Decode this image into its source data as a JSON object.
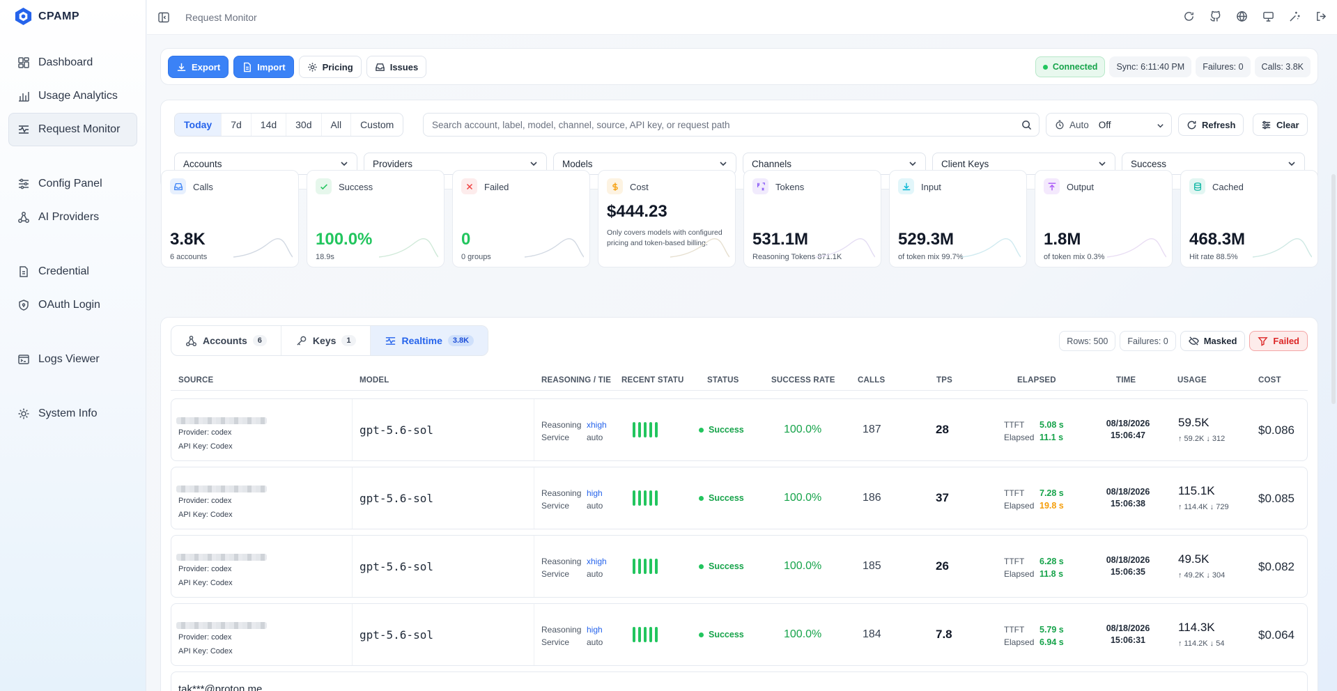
{
  "app": {
    "name": "CPAMP",
    "page_title": "Request Monitor"
  },
  "sidebar": {
    "items": [
      {
        "label": "Dashboard",
        "icon": "dashboard-icon"
      },
      {
        "label": "Usage Analytics",
        "icon": "bar-chart-icon"
      },
      {
        "label": "Request Monitor",
        "icon": "activity-icon",
        "active": true
      },
      {
        "label": "Config Panel",
        "icon": "sliders-icon"
      },
      {
        "label": "AI Providers",
        "icon": "network-icon"
      },
      {
        "label": "Credential",
        "icon": "file-icon"
      },
      {
        "label": "OAuth Login",
        "icon": "shield-icon"
      },
      {
        "label": "Logs Viewer",
        "icon": "terminal-icon"
      },
      {
        "label": "System Info",
        "icon": "cpu-icon"
      }
    ]
  },
  "toolbar": {
    "export": "Export",
    "import": "Import",
    "pricing": "Pricing",
    "issues": "Issues",
    "connected": "Connected",
    "sync": "Sync: 6:11:40 PM",
    "failures": "Failures: 0",
    "calls": "Calls: 3.8K"
  },
  "filters": {
    "ranges": [
      "Today",
      "7d",
      "14d",
      "30d",
      "All",
      "Custom"
    ],
    "active_range": "Today",
    "search_placeholder": "Search account, label, model, channel, source, API key, or request path",
    "auto_label": "Auto",
    "auto_value": "Off",
    "refresh": "Refresh",
    "clear": "Clear",
    "selects": [
      "Accounts",
      "Providers",
      "Models",
      "Channels",
      "Client Keys",
      "Success"
    ]
  },
  "cards": [
    {
      "label": "Calls",
      "value": "3.8K",
      "sub": "6 accounts",
      "color": "#3b82f6"
    },
    {
      "label": "Success",
      "value": "100.0%",
      "sub": "18.9s",
      "color": "#22c55e"
    },
    {
      "label": "Failed",
      "value": "0",
      "sub": "0 groups",
      "color": "#ef4444"
    },
    {
      "label": "Cost",
      "value": "$444.23",
      "note": "Only covers models with configured pricing and token-based billing.",
      "color": "#f59e0b"
    },
    {
      "label": "Tokens",
      "value": "531.1M",
      "sub": "Reasoning Tokens 871.1K",
      "color": "#8b5cf6"
    },
    {
      "label": "Input",
      "value": "529.3M",
      "sub": "of token mix 99.7%",
      "color": "#06b6d4"
    },
    {
      "label": "Output",
      "value": "1.8M",
      "sub": "of token mix 0.3%",
      "color": "#a855f7"
    },
    {
      "label": "Cached",
      "value": "468.3M",
      "sub": "Hit rate 88.5%",
      "color": "#14b8a6"
    }
  ],
  "tabs": [
    {
      "label": "Accounts",
      "count": "6"
    },
    {
      "label": "Keys",
      "count": "1"
    },
    {
      "label": "Realtime",
      "count": "3.8K"
    }
  ],
  "table_tools": {
    "rows": "Rows: 500",
    "failures": "Failures: 0",
    "masked": "Masked",
    "failed": "Failed"
  },
  "columns": [
    "SOURCE",
    "MODEL",
    "REASONING / TIER",
    "RECENT STATUS",
    "STATUS",
    "SUCCESS RATE",
    "CALLS",
    "TPS",
    "ELAPSED",
    "TIME",
    "USAGE",
    "COST"
  ],
  "rows": [
    {
      "provider": "Provider: codex",
      "apikey": "API Key: Codex",
      "model": "gpt-5.6-sol",
      "reasoning_label": "Reasoning",
      "reasoning": "xhigh",
      "service_label": "Service",
      "service": "auto",
      "status": "Success",
      "rate": "100.0%",
      "calls": "187",
      "tps": "28",
      "ttft_label": "TTFT",
      "ttft": "5.08 s",
      "elapsed_label": "Elapsed",
      "elapsed": "11.1 s",
      "elapsed_color": "#16a34a",
      "date": "08/18/2026",
      "time": "15:06:47",
      "usage": "59.5K",
      "usage_sub": "↑ 59.2K  ↓ 312",
      "cost": "$0.086"
    },
    {
      "provider": "Provider: codex",
      "apikey": "API Key: Codex",
      "model": "gpt-5.6-sol",
      "reasoning_label": "Reasoning",
      "reasoning": "high",
      "service_label": "Service",
      "service": "auto",
      "status": "Success",
      "rate": "100.0%",
      "calls": "186",
      "tps": "37",
      "ttft_label": "TTFT",
      "ttft": "7.28 s",
      "elapsed_label": "Elapsed",
      "elapsed": "19.8 s",
      "elapsed_color": "#f59e0b",
      "date": "08/18/2026",
      "time": "15:06:38",
      "usage": "115.1K",
      "usage_sub": "↑ 114.4K  ↓ 729",
      "cost": "$0.085"
    },
    {
      "provider": "Provider: codex",
      "apikey": "API Key: Codex",
      "model": "gpt-5.6-sol",
      "reasoning_label": "Reasoning",
      "reasoning": "xhigh",
      "service_label": "Service",
      "service": "auto",
      "status": "Success",
      "rate": "100.0%",
      "calls": "185",
      "tps": "26",
      "ttft_label": "TTFT",
      "ttft": "6.28 s",
      "elapsed_label": "Elapsed",
      "elapsed": "11.8 s",
      "elapsed_color": "#16a34a",
      "date": "08/18/2026",
      "time": "15:06:35",
      "usage": "49.5K",
      "usage_sub": "↑ 49.2K  ↓ 304",
      "cost": "$0.082"
    },
    {
      "provider": "Provider: codex",
      "apikey": "API Key: Codex",
      "model": "gpt-5.6-sol",
      "reasoning_label": "Reasoning",
      "reasoning": "high",
      "service_label": "Service",
      "service": "auto",
      "status": "Success",
      "rate": "100.0%",
      "calls": "184",
      "tps": "7.8",
      "ttft_label": "TTFT",
      "ttft": "5.79 s",
      "elapsed_label": "Elapsed",
      "elapsed": "6.94 s",
      "elapsed_color": "#16a34a",
      "date": "08/18/2026",
      "time": "15:06:31",
      "usage": "114.3K",
      "usage_sub": "↑ 114.2K  ↓ 54",
      "cost": "$0.064"
    }
  ],
  "partial_row": {
    "source": "tak***@proton.me"
  }
}
